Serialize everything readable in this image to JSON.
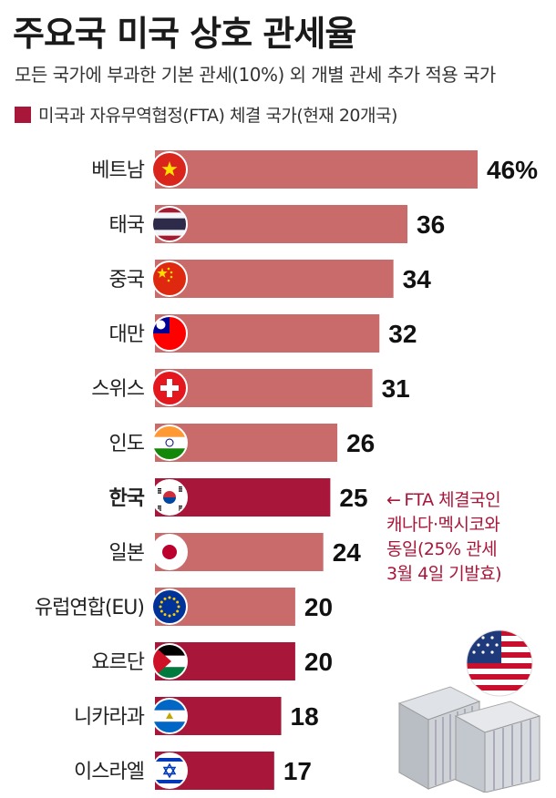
{
  "header": {
    "title": "주요국 미국 상호 관세율",
    "subtitle": "모든 국가에 부과한 기본 관세(10%) 외 개별 관세 추가 적용 국가",
    "legend_label": "미국과 자유무역협정(FTA) 체결 국가(현재 20개국)"
  },
  "colors": {
    "bar_default": "#c96b6b",
    "bar_fta": "#a8163a",
    "note_text": "#a8163a"
  },
  "chart_data": {
    "type": "bar",
    "orientation": "horizontal",
    "categories": [
      "베트남",
      "태국",
      "중국",
      "대만",
      "스위스",
      "인도",
      "한국",
      "일본",
      "유럽연합(EU)",
      "요르단",
      "니카라과",
      "이스라엘"
    ],
    "values": [
      46,
      36,
      34,
      32,
      31,
      26,
      25,
      24,
      20,
      20,
      18,
      17
    ],
    "value_labels": [
      "46%",
      "36",
      "34",
      "32",
      "31",
      "26",
      "25",
      "24",
      "20",
      "20",
      "18",
      "17"
    ],
    "fta": [
      false,
      false,
      false,
      false,
      false,
      false,
      true,
      false,
      false,
      true,
      true,
      true
    ],
    "flag_icons": [
      "vietnam-flag-icon",
      "thailand-flag-icon",
      "china-flag-icon",
      "taiwan-flag-icon",
      "switzerland-flag-icon",
      "india-flag-icon",
      "korea-flag-icon",
      "japan-flag-icon",
      "eu-flag-icon",
      "jordan-flag-icon",
      "nicaragua-flag-icon",
      "israel-flag-icon"
    ],
    "highlight_category": "한국",
    "xlim": [
      0,
      46
    ]
  },
  "annotation": {
    "arrow": "←",
    "lines": [
      "FTA 체결국인",
      "캐나다·멕시코와",
      "동일(25% 관세",
      "3월 4일 기발효)"
    ]
  },
  "illustration": {
    "icons": [
      "us-flag-icon",
      "shipping-container-icon"
    ]
  }
}
